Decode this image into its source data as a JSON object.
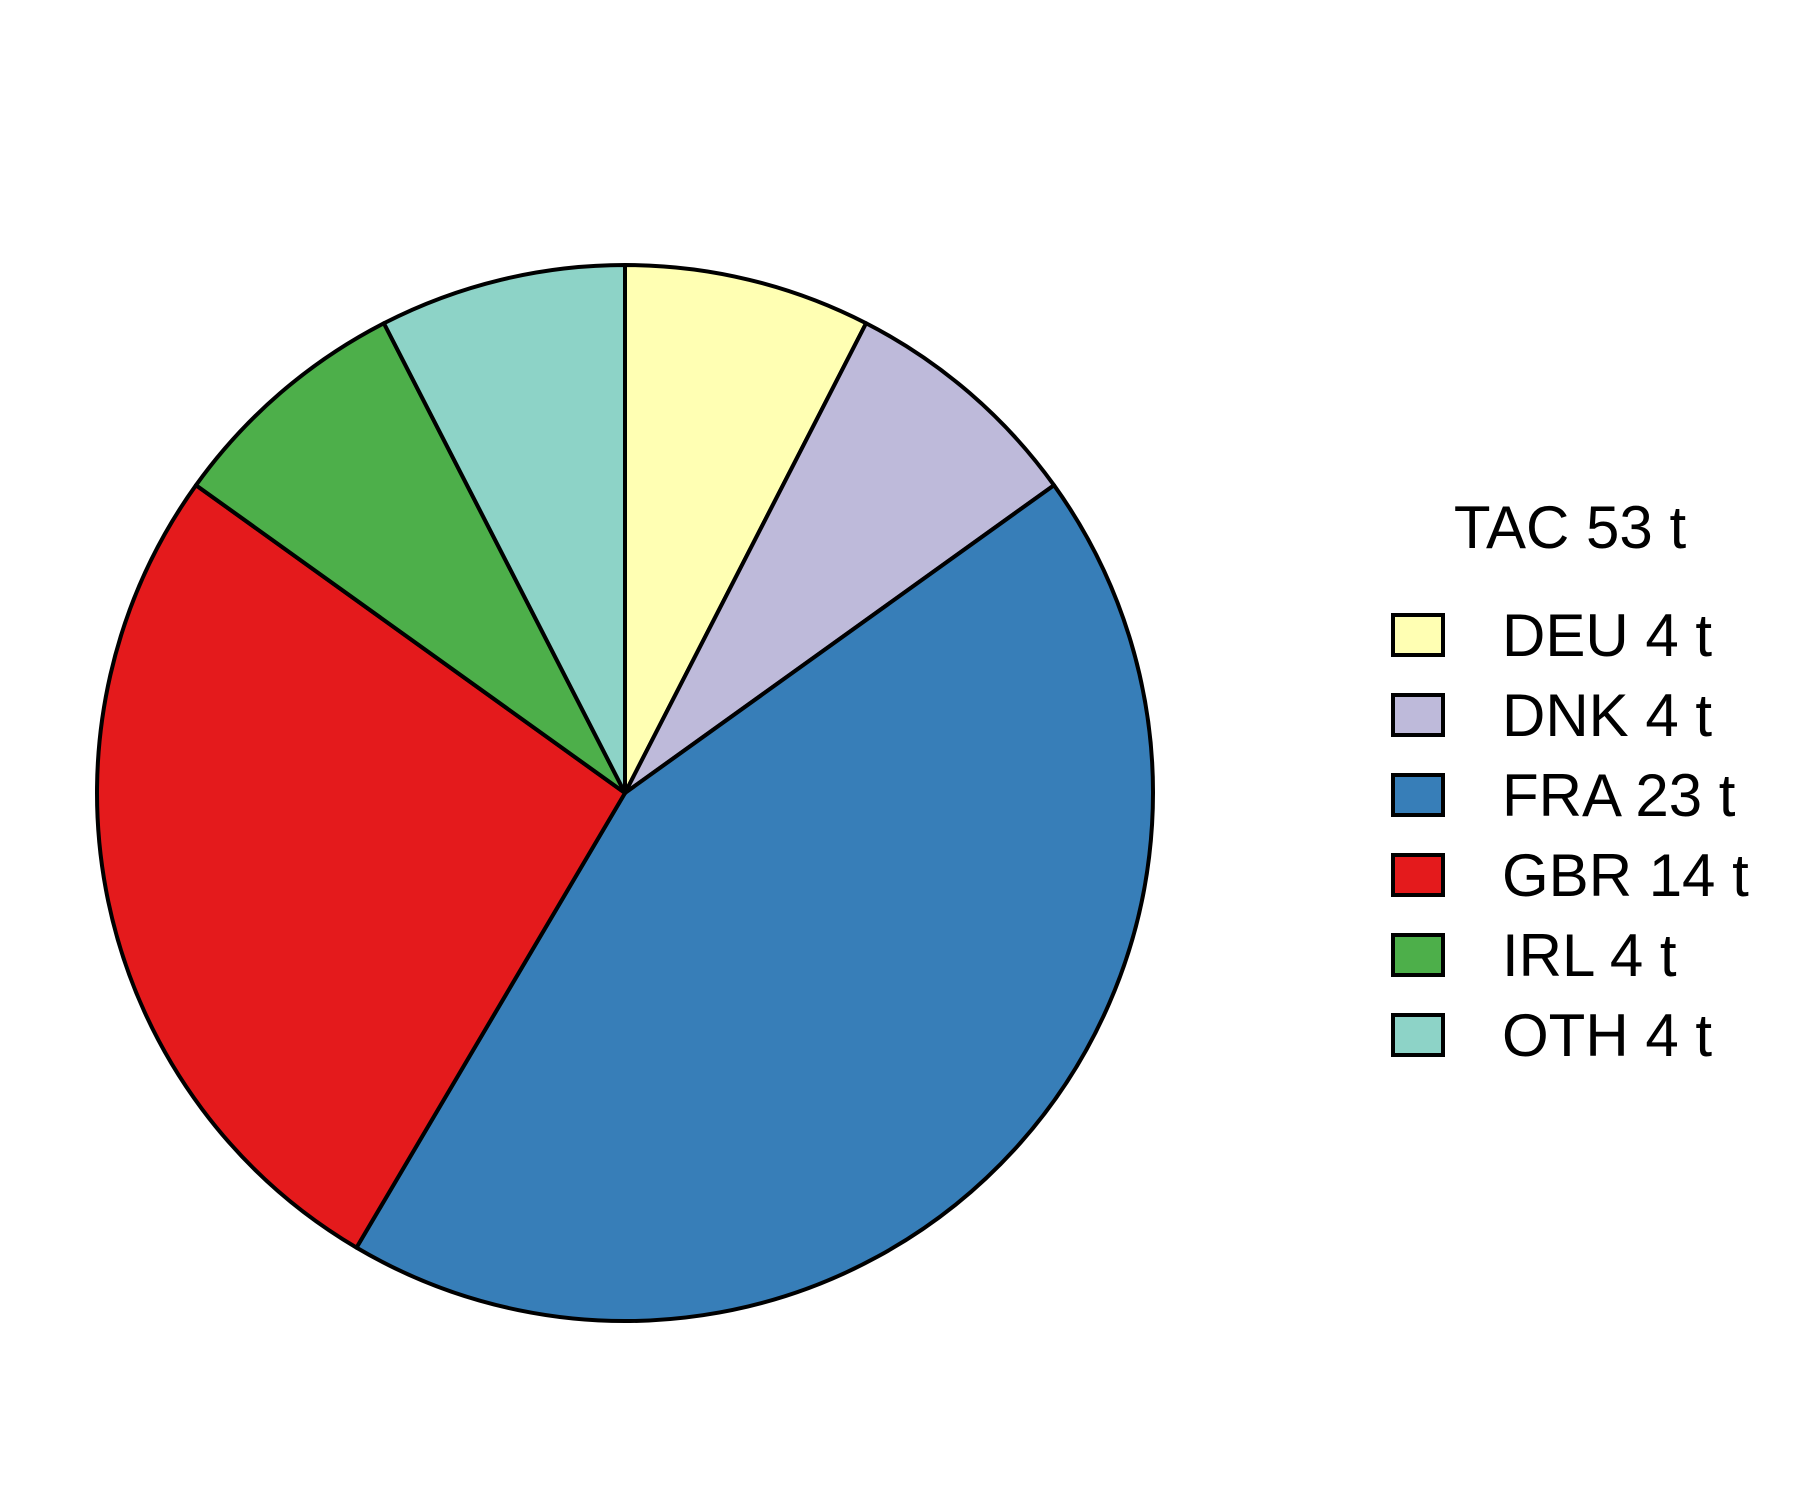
{
  "chart_data": {
    "type": "pie",
    "title": "",
    "legend_title": "TAC 53 t",
    "legend_position": "right",
    "start_angle": "top",
    "direction": "clockwise",
    "slices": [
      {
        "label": "DEU 4 t",
        "category": "DEU",
        "value": 4,
        "color": "#FFFFB3"
      },
      {
        "label": "DNK 4 t",
        "category": "DNK",
        "value": 4,
        "color": "#BEBADA"
      },
      {
        "label": "FRA 23 t",
        "category": "FRA",
        "value": 23,
        "color": "#377EB8"
      },
      {
        "label": "GBR 14 t",
        "category": "GBR",
        "value": 14,
        "color": "#E41A1C"
      },
      {
        "label": "IRL 4 t",
        "category": "IRL",
        "value": 4,
        "color": "#4DAF4A"
      },
      {
        "label": "OTH 4 t",
        "category": "OTH",
        "value": 4,
        "color": "#8DD3C7"
      }
    ],
    "border_color": "#000000",
    "background_color": "#FFFFFF"
  }
}
